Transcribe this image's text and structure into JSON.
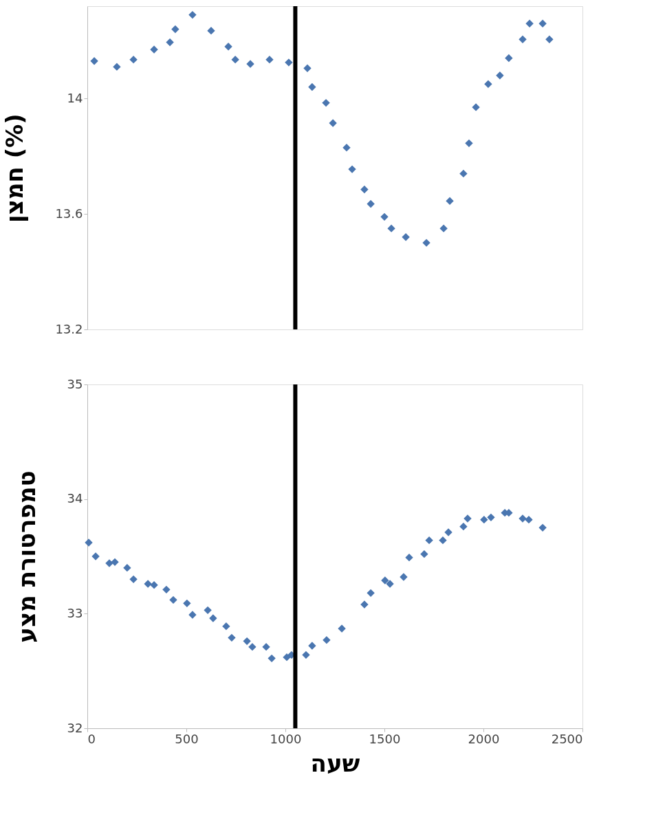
{
  "chart_data": [
    {
      "type": "scatter",
      "ylabel": "חמצן (%)",
      "marker": "diamond",
      "grid": false,
      "tick_labels": "y",
      "xlim": [
        0,
        2500
      ],
      "ylim": [
        13.2,
        14.32
      ],
      "yticks": [
        13.2,
        13.6,
        14
      ],
      "ref_lines": [
        {
          "axis": "x",
          "value": 1050,
          "color": "#000000"
        }
      ],
      "series": [
        {
          "color": "#4a76b0",
          "x": [
            35,
            149,
            233,
            337,
            417,
            444,
            531,
            625,
            712,
            747,
            823,
            920,
            1017,
            1111,
            1135,
            1205,
            1240,
            1309,
            1337,
            1399,
            1431,
            1500,
            1535,
            1608,
            1712,
            1799,
            1830,
            1899,
            1927,
            1962,
            2024,
            2083,
            2128,
            2198,
            2233,
            2299,
            2333
          ],
          "values": [
            14.13,
            14.11,
            14.135,
            14.17,
            14.195,
            14.24,
            14.29,
            14.235,
            14.18,
            14.135,
            14.12,
            14.135,
            14.125,
            14.105,
            14.04,
            13.985,
            13.915,
            13.83,
            13.755,
            13.685,
            13.635,
            13.59,
            13.55,
            13.52,
            13.5,
            13.55,
            13.645,
            13.74,
            13.845,
            13.97,
            14.05,
            14.08,
            14.14,
            14.205,
            14.26,
            14.26,
            14.205
          ]
        }
      ]
    },
    {
      "type": "scatter",
      "xlabel": "שעה",
      "ylabel": "טמפרטורת מצע",
      "marker": "diamond",
      "grid": false,
      "xlim": [
        0,
        2500
      ],
      "xticks": [
        0,
        500,
        1000,
        1500,
        2000,
        2500
      ],
      "ylim": [
        32,
        35
      ],
      "yticks": [
        32,
        33,
        34,
        35
      ],
      "ref_lines": [
        {
          "axis": "x",
          "value": 1050,
          "color": "#000000"
        }
      ],
      "series": [
        {
          "color": "#4a76b0",
          "x": [
            7,
            42,
            111,
            139,
            201,
            233,
            306,
            337,
            399,
            434,
            503,
            531,
            608,
            635,
            701,
            729,
            806,
            833,
            903,
            931,
            1007,
            1031,
            1104,
            1135,
            1208,
            1285,
            1399,
            1431,
            1503,
            1528,
            1597,
            1625,
            1701,
            1726,
            1795,
            1823,
            1899,
            1920,
            2003,
            2038,
            2108,
            2128,
            2198,
            2229,
            2299
          ],
          "values": [
            33.62,
            33.5,
            33.44,
            33.45,
            33.4,
            33.3,
            33.26,
            33.25,
            33.21,
            33.12,
            33.09,
            32.99,
            33.03,
            32.96,
            32.89,
            32.79,
            32.76,
            32.71,
            32.71,
            32.61,
            32.62,
            32.64,
            32.64,
            32.72,
            32.77,
            32.87,
            33.08,
            33.18,
            33.29,
            33.26,
            33.32,
            33.49,
            33.52,
            33.64,
            33.64,
            33.71,
            33.76,
            33.83,
            33.82,
            33.84,
            33.88,
            33.88,
            33.83,
            33.82,
            33.75
          ]
        }
      ]
    }
  ]
}
